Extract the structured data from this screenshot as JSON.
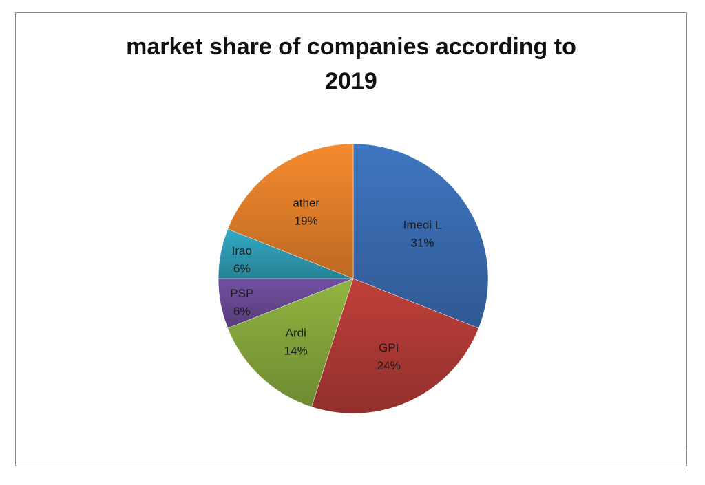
{
  "chart_data": {
    "type": "pie",
    "title_lines": [
      "market share of companies according to",
      "2019"
    ],
    "start_angle_deg": 0,
    "direction": "clockwise",
    "legend": "none",
    "slices": [
      {
        "label": "Imedi L",
        "value": 31,
        "percent_label": "31%",
        "color": "#3a6db3"
      },
      {
        "label": "GPI",
        "value": 24,
        "percent_label": "24%",
        "color": "#b23a36"
      },
      {
        "label": "Ardi",
        "value": 14,
        "percent_label": "14%",
        "color": "#86a83c"
      },
      {
        "label": "PSP",
        "value": 6,
        "percent_label": "6%",
        "color": "#6a4a94"
      },
      {
        "label": "Irao",
        "value": 6,
        "percent_label": "6%",
        "color": "#2f9db6"
      },
      {
        "label": "ather",
        "value": 19,
        "percent_label": "19%",
        "color": "#e4802b"
      }
    ]
  }
}
